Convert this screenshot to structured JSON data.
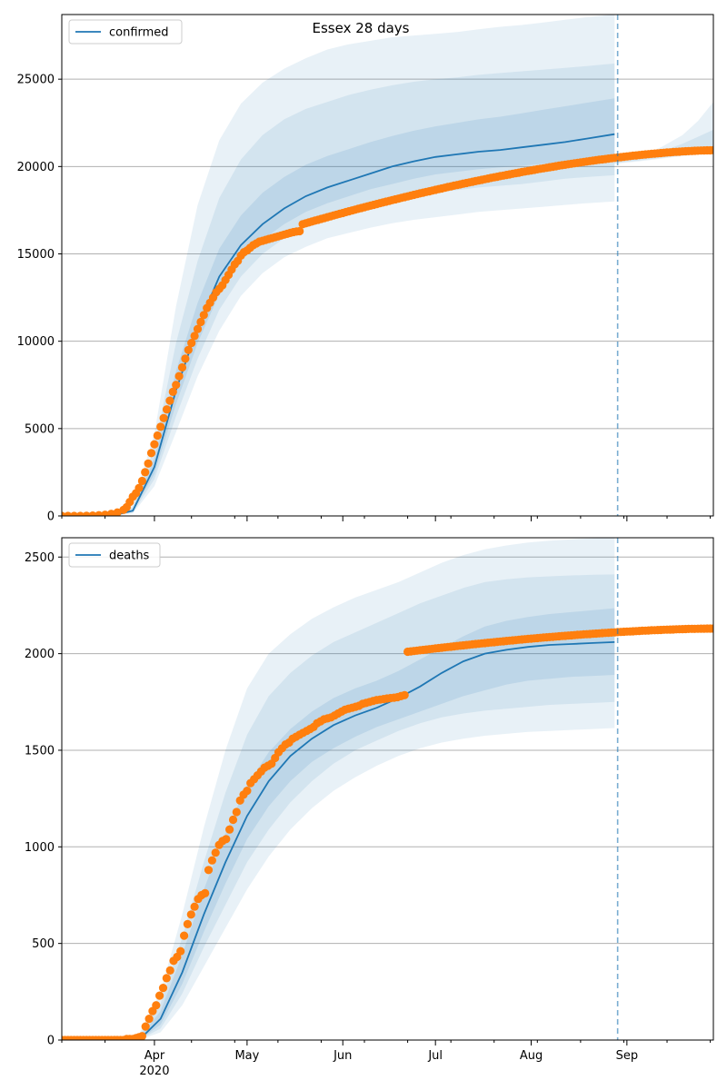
{
  "figure": {
    "title": "Essex 28 days",
    "forecast_split_date": "2020-08-29",
    "x_axis": {
      "range": [
        "2020-03-02",
        "2020-09-29"
      ],
      "major_ticks": [
        {
          "date": "2020-04-01",
          "label": "Apr",
          "sublabel": "2020"
        },
        {
          "date": "2020-05-01",
          "label": "May",
          "sublabel": ""
        },
        {
          "date": "2020-06-01",
          "label": "Jun",
          "sublabel": ""
        },
        {
          "date": "2020-07-01",
          "label": "Jul",
          "sublabel": ""
        },
        {
          "date": "2020-08-01",
          "label": "Aug",
          "sublabel": ""
        },
        {
          "date": "2020-09-01",
          "label": "Sep",
          "sublabel": ""
        }
      ],
      "minor_ticks": [
        "2020-03-02",
        "2020-03-16",
        "2020-04-13",
        "2020-04-27",
        "2020-05-11",
        "2020-05-25",
        "2020-06-08",
        "2020-06-22",
        "2020-07-06",
        "2020-07-20",
        "2020-08-03",
        "2020-08-17",
        "2020-08-31",
        "2020-09-14",
        "2020-09-28"
      ]
    },
    "colors": {
      "model_line": "#1f77b4",
      "observed_points": "#ff7f0e",
      "band": "#1f77b4",
      "grid": "#b0b0b0",
      "split_line": "#1f77b4"
    }
  },
  "chart_data": [
    {
      "type": "line",
      "panel": "confirmed",
      "legend": {
        "label": "confirmed",
        "placement": "upper-left"
      },
      "ylim": [
        0,
        28700
      ],
      "yticks": [
        0,
        5000,
        10000,
        15000,
        20000,
        25000
      ],
      "grid": "y",
      "model": {
        "x": [
          "2020-03-18",
          "2020-03-25",
          "2020-04-01",
          "2020-04-08",
          "2020-04-15",
          "2020-04-22",
          "2020-04-29",
          "2020-05-06",
          "2020-05-13",
          "2020-05-20",
          "2020-05-27",
          "2020-06-03",
          "2020-06-10",
          "2020-06-17",
          "2020-06-24",
          "2020-07-01",
          "2020-07-08",
          "2020-07-15",
          "2020-07-22",
          "2020-07-29",
          "2020-08-05",
          "2020-08-12",
          "2020-08-19",
          "2020-08-28"
        ],
        "median": [
          0,
          300,
          2800,
          7200,
          10800,
          13700,
          15500,
          16700,
          17600,
          18300,
          18800,
          19200,
          19600,
          20000,
          20300,
          20550,
          20700,
          20850,
          20950,
          21100,
          21250,
          21400,
          21600,
          21850
        ],
        "bands": [
          {
            "lower": [
              0,
              150,
              1700,
              4800,
              8000,
              10600,
              12600,
              13900,
              14800,
              15400,
              15900,
              16200,
              16500,
              16750,
              16950,
              17100,
              17250,
              17400,
              17500,
              17600,
              17700,
              17800,
              17900,
              18000
            ],
            "upper": [
              0,
              700,
              4700,
              12000,
              17800,
              21500,
              23600,
              24800,
              25600,
              26200,
              26700,
              27000,
              27200,
              27400,
              27500,
              27600,
              27700,
              27850,
              28000,
              28100,
              28250,
              28400,
              28550,
              28700
            ]
          },
          {
            "lower": [
              0,
              200,
              2100,
              5700,
              9000,
              11800,
              13700,
              15000,
              15900,
              16600,
              17100,
              17500,
              17800,
              18100,
              18300,
              18500,
              18650,
              18800,
              18900,
              19000,
              19150,
              19300,
              19400,
              19500
            ],
            "upper": [
              0,
              500,
              3900,
              9900,
              14600,
              18200,
              20400,
              21800,
              22700,
              23300,
              23700,
              24100,
              24400,
              24650,
              24850,
              25000,
              25100,
              25250,
              25350,
              25450,
              25550,
              25650,
              25750,
              25900
            ]
          },
          {
            "lower": [
              0,
              250,
              2400,
              6400,
              9900,
              12700,
              14600,
              15800,
              16700,
              17400,
              17900,
              18300,
              18700,
              19000,
              19300,
              19550,
              19700,
              19850,
              19950,
              20050,
              20150,
              20250,
              20350,
              20500
            ],
            "upper": [
              0,
              400,
              3300,
              8300,
              12200,
              15300,
              17200,
              18500,
              19400,
              20100,
              20600,
              21000,
              21400,
              21750,
              22050,
              22300,
              22500,
              22700,
              22850,
              23050,
              23250,
              23450,
              23650,
              23900
            ]
          }
        ]
      },
      "forecast": {
        "x": [
          "2020-08-28",
          "2020-09-05",
          "2020-09-12",
          "2020-09-19",
          "2020-09-24",
          "2020-09-29"
        ],
        "bands": [
          {
            "lower": [
              20150,
              20300,
              20450,
              20600,
              20680,
              20750
            ],
            "upper": [
              20400,
              20600,
              21100,
              21800,
              22600,
              23700
            ]
          },
          {
            "lower": [
              20200,
              20350,
              20500,
              20650,
              20720,
              20780
            ],
            "upper": [
              20350,
              20500,
              20850,
              21300,
              21700,
              22100
            ]
          }
        ]
      },
      "observed": {
        "segments": [
          {
            "x0": "2020-03-02",
            "x1": "2020-03-22",
            "y": [
              0,
              0,
              0,
              0,
              10,
              20,
              40,
              70,
              120,
              200,
              350
            ]
          },
          {
            "x0": "2020-03-23",
            "x1": "2020-04-30",
            "y": [
              500,
              800,
              1100,
              1300,
              1600,
              2000,
              2500,
              3000,
              3600,
              4100,
              4600,
              5100,
              5600,
              6100,
              6600,
              7100,
              7500,
              8000,
              8500,
              9000,
              9500,
              9900,
              10300,
              10700,
              11100,
              11500,
              11900,
              12200,
              12500,
              12800,
              13000,
              13200,
              13500,
              13800,
              14100,
              14400,
              14600,
              14900,
              15100
            ]
          },
          {
            "x0": "2020-05-01",
            "x1": "2020-05-18",
            "y": [
              15200,
              15350,
              15500,
              15600,
              15700,
              15750,
              15800,
              15850,
              15900,
              15950,
              16000,
              16050,
              16100,
              16150,
              16200,
              16250,
              16280,
              16300
            ]
          },
          {
            "x0": "2020-05-19",
            "x1": "2020-09-29",
            "y": [
              16700,
              20930
            ]
          }
        ]
      }
    },
    {
      "type": "line",
      "panel": "deaths",
      "legend": {
        "label": "deaths",
        "placement": "upper-left"
      },
      "ylim": [
        0,
        2600
      ],
      "yticks": [
        0,
        500,
        1000,
        1500,
        2000,
        2500
      ],
      "grid": "y",
      "model": {
        "x": [
          "2020-03-27",
          "2020-04-03",
          "2020-04-10",
          "2020-04-17",
          "2020-04-24",
          "2020-05-01",
          "2020-05-08",
          "2020-05-15",
          "2020-05-22",
          "2020-05-29",
          "2020-06-05",
          "2020-06-12",
          "2020-06-19",
          "2020-06-26",
          "2020-07-03",
          "2020-07-10",
          "2020-07-17",
          "2020-07-24",
          "2020-07-31",
          "2020-08-07",
          "2020-08-14",
          "2020-08-21",
          "2020-08-28"
        ],
        "median": [
          0,
          110,
          350,
          650,
          920,
          1160,
          1340,
          1470,
          1560,
          1630,
          1680,
          1720,
          1770,
          1830,
          1900,
          1960,
          2000,
          2020,
          2035,
          2045,
          2050,
          2055,
          2060
        ],
        "bands": [
          {
            "lower": [
              0,
              40,
              180,
              380,
              580,
              780,
              950,
              1090,
              1200,
              1290,
              1360,
              1420,
              1470,
              1510,
              1540,
              1560,
              1575,
              1585,
              1595,
              1600,
              1605,
              1610,
              1615
            ],
            "upper": [
              30,
              250,
              650,
              1100,
              1500,
              1820,
              2000,
              2100,
              2180,
              2240,
              2290,
              2330,
              2370,
              2420,
              2470,
              2510,
              2540,
              2560,
              2575,
              2585,
              2592,
              2597,
              2600
            ]
          },
          {
            "lower": [
              0,
              60,
              240,
              480,
              700,
              920,
              1090,
              1230,
              1340,
              1430,
              1500,
              1550,
              1600,
              1640,
              1670,
              1690,
              1705,
              1715,
              1725,
              1735,
              1740,
              1745,
              1750
            ],
            "upper": [
              20,
              190,
              530,
              920,
              1280,
              1580,
              1780,
              1900,
              1990,
              2060,
              2110,
              2160,
              2210,
              2260,
              2300,
              2340,
              2370,
              2385,
              2395,
              2400,
              2405,
              2408,
              2410
            ]
          },
          {
            "lower": [
              0,
              80,
              290,
              560,
              810,
              1040,
              1210,
              1340,
              1440,
              1510,
              1570,
              1620,
              1660,
              1700,
              1740,
              1780,
              1810,
              1840,
              1860,
              1870,
              1880,
              1885,
              1890
            ],
            "upper": [
              10,
              150,
              440,
              780,
              1070,
              1320,
              1490,
              1610,
              1700,
              1770,
              1820,
              1860,
              1910,
              1970,
              2030,
              2090,
              2140,
              2170,
              2190,
              2205,
              2215,
              2225,
              2235
            ]
          }
        ]
      },
      "forecast": {
        "x": [
          "2020-08-28",
          "2020-09-10",
          "2020-09-20",
          "2020-09-29"
        ],
        "bands": [
          {
            "lower": [
              2105,
              2110,
              2118,
              2125
            ],
            "upper": [
              2125,
              2130,
              2136,
              2142
            ]
          }
        ]
      },
      "observed": {
        "segments": [
          {
            "x0": "2020-03-02",
            "x1": "2020-03-27",
            "y": [
              0,
              0,
              0,
              0,
              0,
              0,
              0,
              0,
              0,
              0,
              0,
              0,
              0,
              0,
              0,
              0,
              0,
              0,
              0,
              0,
              0,
              5,
              5,
              5,
              10,
              15
            ]
          },
          {
            "x0": "2020-03-28",
            "x1": "2020-06-21",
            "y": [
              20,
              70,
              110,
              150,
              180,
              230,
              270,
              320,
              360,
              410,
              430,
              460,
              540,
              600,
              650,
              690,
              730,
              750,
              760,
              880,
              930,
              970,
              1010,
              1030,
              1040,
              1090,
              1140,
              1180,
              1240,
              1270,
              1290,
              1330,
              1350,
              1370,
              1390,
              1410,
              1420,
              1430,
              1460,
              1490,
              1510,
              1530,
              1540,
              1560,
              1570,
              1580,
              1590,
              1600,
              1610,
              1620,
              1640,
              1650,
              1660,
              1665,
              1670,
              1680,
              1690,
              1700,
              1710,
              1715,
              1720,
              1725,
              1730,
              1740,
              1745,
              1750,
              1755,
              1760,
              1762,
              1765,
              1768,
              1770,
              1772,
              1775,
              1780,
              1785
            ]
          },
          {
            "x0": "2020-06-22",
            "x1": "2020-09-29",
            "y": [
              2010,
              2130
            ]
          }
        ]
      }
    }
  ]
}
